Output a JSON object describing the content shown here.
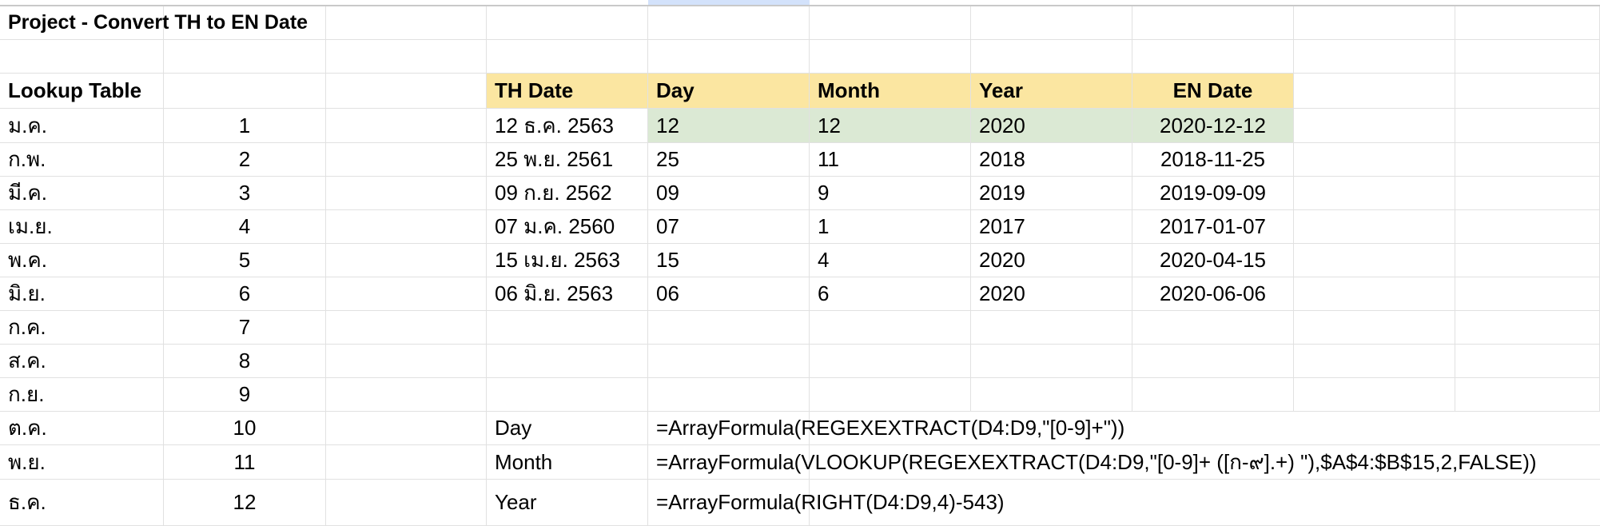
{
  "title": "Project - Convert TH to EN Date",
  "lookup_header": "Lookup Table",
  "headers": [
    "TH Date",
    "Day",
    "Month",
    "Year",
    "EN Date"
  ],
  "lookup": [
    {
      "th": "ม.ค.",
      "num": "1"
    },
    {
      "th": "ก.พ.",
      "num": "2"
    },
    {
      "th": "มี.ค.",
      "num": "3"
    },
    {
      "th": "เม.ย.",
      "num": "4"
    },
    {
      "th": "พ.ค.",
      "num": "5"
    },
    {
      "th": "มิ.ย.",
      "num": "6"
    },
    {
      "th": "ก.ค.",
      "num": "7"
    },
    {
      "th": "ส.ค.",
      "num": "8"
    },
    {
      "th": "ก.ย.",
      "num": "9"
    },
    {
      "th": "ต.ค.",
      "num": "10"
    },
    {
      "th": "พ.ย.",
      "num": "11"
    },
    {
      "th": "ธ.ค.",
      "num": "12"
    }
  ],
  "dates": [
    {
      "th_date": "12 ธ.ค. 2563",
      "day": "12",
      "month": "12",
      "year": "2020",
      "en_date": "2020-12-12"
    },
    {
      "th_date": "25 พ.ย. 2561",
      "day": "25",
      "month": "11",
      "year": "2018",
      "en_date": "2018-11-25"
    },
    {
      "th_date": "09 ก.ย. 2562",
      "day": "09",
      "month": "9",
      "year": "2019",
      "en_date": "2019-09-09"
    },
    {
      "th_date": "07 ม.ค. 2560",
      "day": "07",
      "month": "1",
      "year": "2017",
      "en_date": "2017-01-07"
    },
    {
      "th_date": "15 เม.ย. 2563",
      "day": "15",
      "month": "4",
      "year": "2020",
      "en_date": "2020-04-15"
    },
    {
      "th_date": "06 มิ.ย. 2563",
      "day": "06",
      "month": "6",
      "year": "2020",
      "en_date": "2020-06-06"
    }
  ],
  "formulas": [
    {
      "label": "Day",
      "formula": "=ArrayFormula(REGEXEXTRACT(D4:D9,\"[0-9]+\"))"
    },
    {
      "label": "Month",
      "formula": "=ArrayFormula(VLOOKUP(REGEXEXTRACT(D4:D9,\"[0-9]+ ([ก-๙].+) \"),$A$4:$B$15,2,FALSE))"
    },
    {
      "label": "Year",
      "formula": "=ArrayFormula(RIGHT(D4:D9,4)-543)"
    }
  ],
  "colors": {
    "header_bg": "#fbe6a1",
    "highlight_bg": "#dbe9d4",
    "gridline": "#e1e1e1"
  }
}
